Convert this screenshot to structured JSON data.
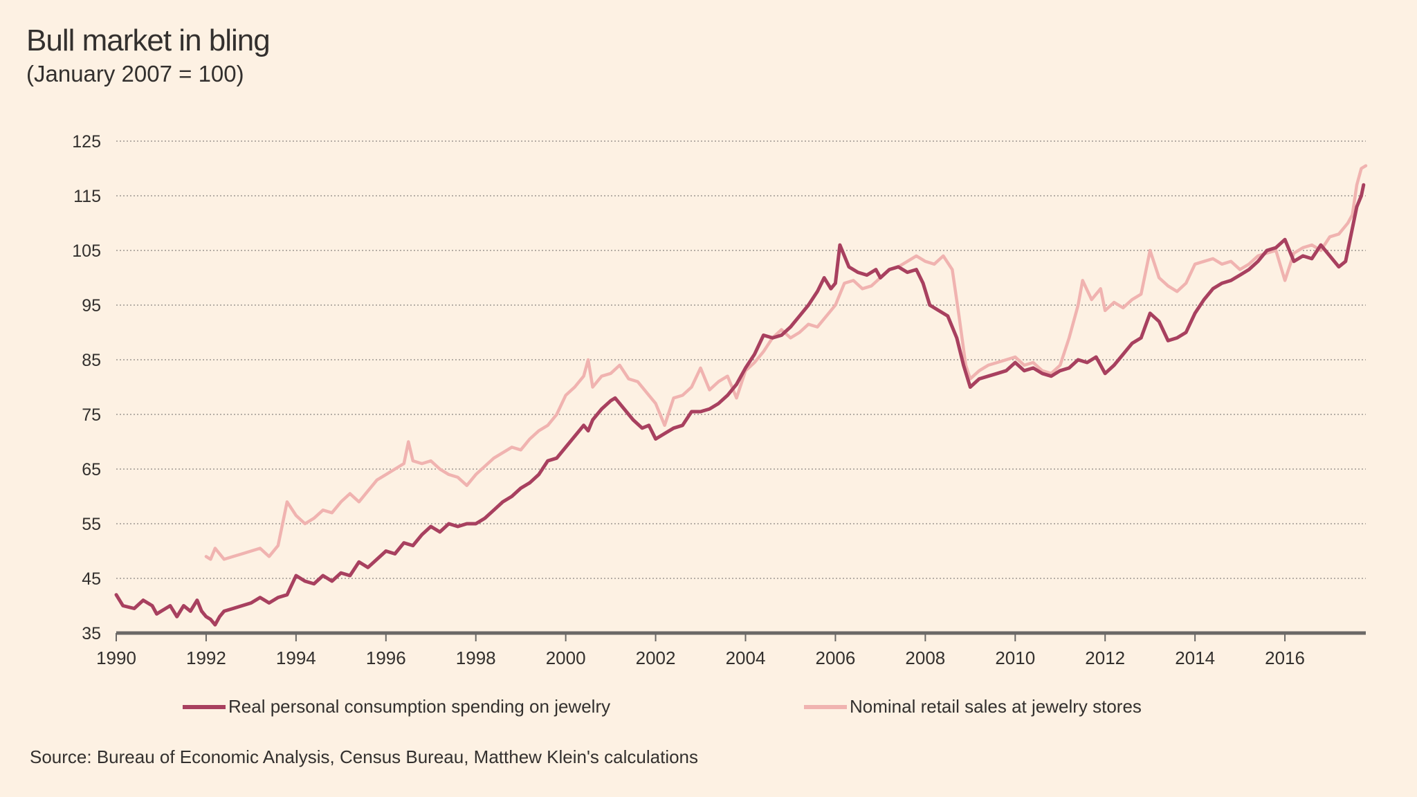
{
  "chart_data": {
    "type": "line",
    "title": "Bull market in bling",
    "subtitle": "(January 2007 = 100)",
    "xlabel": "",
    "ylabel": "",
    "xlim": [
      1990,
      2017.8
    ],
    "ylim": [
      35,
      125
    ],
    "y_ticks": [
      35,
      45,
      55,
      65,
      75,
      85,
      95,
      105,
      115,
      125
    ],
    "x_ticks": [
      "1990",
      "1992",
      "1994",
      "1996",
      "1998",
      "2000",
      "2002",
      "2004",
      "2006",
      "2008",
      "2010",
      "2012",
      "2014",
      "2016"
    ],
    "grid": "horizontal dotted",
    "legend_position": "bottom",
    "series": [
      {
        "name": "Real personal consumption spending on jewelry",
        "color": "#a8405f",
        "points": [
          [
            1990.0,
            42
          ],
          [
            1990.15,
            40
          ],
          [
            1990.4,
            39.5
          ],
          [
            1990.6,
            41
          ],
          [
            1990.8,
            40
          ],
          [
            1990.9,
            38.5
          ],
          [
            1991.0,
            39
          ],
          [
            1991.2,
            40
          ],
          [
            1991.35,
            38
          ],
          [
            1991.5,
            40
          ],
          [
            1991.65,
            39
          ],
          [
            1991.8,
            41
          ],
          [
            1991.9,
            39
          ],
          [
            1992.0,
            38
          ],
          [
            1992.1,
            37.5
          ],
          [
            1992.2,
            36.5
          ],
          [
            1992.3,
            38
          ],
          [
            1992.4,
            39
          ],
          [
            1992.6,
            39.5
          ],
          [
            1992.8,
            40
          ],
          [
            1993.0,
            40.5
          ],
          [
            1993.2,
            41.5
          ],
          [
            1993.4,
            40.5
          ],
          [
            1993.6,
            41.5
          ],
          [
            1993.8,
            42
          ],
          [
            1994.0,
            45.5
          ],
          [
            1994.2,
            44.5
          ],
          [
            1994.4,
            44
          ],
          [
            1994.6,
            45.5
          ],
          [
            1994.8,
            44.5
          ],
          [
            1995.0,
            46
          ],
          [
            1995.2,
            45.5
          ],
          [
            1995.4,
            48
          ],
          [
            1995.6,
            47
          ],
          [
            1995.8,
            48.5
          ],
          [
            1996.0,
            50
          ],
          [
            1996.2,
            49.5
          ],
          [
            1996.4,
            51.5
          ],
          [
            1996.6,
            51
          ],
          [
            1996.8,
            53
          ],
          [
            1997.0,
            54.5
          ],
          [
            1997.2,
            53.5
          ],
          [
            1997.4,
            55
          ],
          [
            1997.6,
            54.5
          ],
          [
            1997.8,
            55
          ],
          [
            1998.0,
            55
          ],
          [
            1998.2,
            56
          ],
          [
            1998.4,
            57.5
          ],
          [
            1998.6,
            59
          ],
          [
            1998.8,
            60
          ],
          [
            1999.0,
            61.5
          ],
          [
            1999.2,
            62.5
          ],
          [
            1999.4,
            64
          ],
          [
            1999.6,
            66.5
          ],
          [
            1999.8,
            67
          ],
          [
            2000.0,
            69
          ],
          [
            2000.2,
            71
          ],
          [
            2000.4,
            73
          ],
          [
            2000.5,
            72
          ],
          [
            2000.6,
            74
          ],
          [
            2000.8,
            76
          ],
          [
            2001.0,
            77.5
          ],
          [
            2001.1,
            78
          ],
          [
            2001.3,
            76
          ],
          [
            2001.5,
            74
          ],
          [
            2001.7,
            72.5
          ],
          [
            2001.85,
            73
          ],
          [
            2002.0,
            70.5
          ],
          [
            2002.2,
            71.5
          ],
          [
            2002.4,
            72.5
          ],
          [
            2002.6,
            73
          ],
          [
            2002.8,
            75.5
          ],
          [
            2003.0,
            75.5
          ],
          [
            2003.2,
            76
          ],
          [
            2003.4,
            77
          ],
          [
            2003.6,
            78.5
          ],
          [
            2003.8,
            80.5
          ],
          [
            2004.0,
            83.5
          ],
          [
            2004.2,
            86
          ],
          [
            2004.4,
            89.5
          ],
          [
            2004.6,
            89
          ],
          [
            2004.8,
            89.5
          ],
          [
            2005.0,
            91
          ],
          [
            2005.2,
            93
          ],
          [
            2005.4,
            95
          ],
          [
            2005.6,
            97.5
          ],
          [
            2005.75,
            100
          ],
          [
            2005.9,
            98
          ],
          [
            2006.0,
            99
          ],
          [
            2006.1,
            106
          ],
          [
            2006.3,
            102
          ],
          [
            2006.5,
            101
          ],
          [
            2006.7,
            100.5
          ],
          [
            2006.9,
            101.5
          ],
          [
            2007.0,
            100
          ],
          [
            2007.2,
            101.5
          ],
          [
            2007.4,
            102
          ],
          [
            2007.6,
            101
          ],
          [
            2007.8,
            101.5
          ],
          [
            2007.95,
            99
          ],
          [
            2008.1,
            95
          ],
          [
            2008.3,
            94
          ],
          [
            2008.5,
            93
          ],
          [
            2008.7,
            89
          ],
          [
            2008.85,
            84
          ],
          [
            2009.0,
            80
          ],
          [
            2009.2,
            81.5
          ],
          [
            2009.4,
            82
          ],
          [
            2009.6,
            82.5
          ],
          [
            2009.8,
            83
          ],
          [
            2010.0,
            84.5
          ],
          [
            2010.2,
            83
          ],
          [
            2010.4,
            83.5
          ],
          [
            2010.6,
            82.5
          ],
          [
            2010.8,
            82
          ],
          [
            2011.0,
            83
          ],
          [
            2011.2,
            83.5
          ],
          [
            2011.4,
            85
          ],
          [
            2011.6,
            84.5
          ],
          [
            2011.8,
            85.5
          ],
          [
            2012.0,
            82.5
          ],
          [
            2012.2,
            84
          ],
          [
            2012.4,
            86
          ],
          [
            2012.6,
            88
          ],
          [
            2012.8,
            89
          ],
          [
            2013.0,
            93.5
          ],
          [
            2013.2,
            92
          ],
          [
            2013.4,
            88.5
          ],
          [
            2013.6,
            89
          ],
          [
            2013.8,
            90
          ],
          [
            2014.0,
            93.5
          ],
          [
            2014.2,
            96
          ],
          [
            2014.4,
            98
          ],
          [
            2014.6,
            99
          ],
          [
            2014.8,
            99.5
          ],
          [
            2015.0,
            100.5
          ],
          [
            2015.2,
            101.5
          ],
          [
            2015.4,
            103
          ],
          [
            2015.6,
            105
          ],
          [
            2015.8,
            105.5
          ],
          [
            2016.0,
            107
          ],
          [
            2016.2,
            103
          ],
          [
            2016.4,
            104
          ],
          [
            2016.6,
            103.5
          ],
          [
            2016.8,
            106
          ],
          [
            2017.0,
            104
          ],
          [
            2017.2,
            102
          ],
          [
            2017.35,
            103
          ],
          [
            2017.5,
            109
          ],
          [
            2017.6,
            113
          ],
          [
            2017.7,
            115
          ],
          [
            2017.75,
            117
          ]
        ]
      },
      {
        "name": "Nominal retail sales at jewelry stores",
        "color": "#f0b3b0",
        "points": [
          [
            1992.0,
            49
          ],
          [
            1992.1,
            48.5
          ],
          [
            1992.2,
            50.5
          ],
          [
            1992.4,
            48.5
          ],
          [
            1992.6,
            49
          ],
          [
            1992.8,
            49.5
          ],
          [
            1993.0,
            50
          ],
          [
            1993.2,
            50.5
          ],
          [
            1993.4,
            49
          ],
          [
            1993.6,
            51
          ],
          [
            1993.7,
            55
          ],
          [
            1993.8,
            59
          ],
          [
            1994.0,
            56.5
          ],
          [
            1994.2,
            55
          ],
          [
            1994.4,
            56
          ],
          [
            1994.6,
            57.5
          ],
          [
            1994.8,
            57
          ],
          [
            1995.0,
            59
          ],
          [
            1995.2,
            60.5
          ],
          [
            1995.4,
            59
          ],
          [
            1995.6,
            61
          ],
          [
            1995.8,
            63
          ],
          [
            1996.0,
            64
          ],
          [
            1996.2,
            65
          ],
          [
            1996.4,
            66
          ],
          [
            1996.5,
            70
          ],
          [
            1996.6,
            66.5
          ],
          [
            1996.8,
            66
          ],
          [
            1997.0,
            66.5
          ],
          [
            1997.2,
            65
          ],
          [
            1997.4,
            64
          ],
          [
            1997.6,
            63.5
          ],
          [
            1997.8,
            62
          ],
          [
            1998.0,
            64
          ],
          [
            1998.2,
            65.5
          ],
          [
            1998.4,
            67
          ],
          [
            1998.6,
            68
          ],
          [
            1998.8,
            69
          ],
          [
            1999.0,
            68.5
          ],
          [
            1999.2,
            70.5
          ],
          [
            1999.4,
            72
          ],
          [
            1999.6,
            73
          ],
          [
            1999.8,
            75
          ],
          [
            2000.0,
            78.5
          ],
          [
            2000.2,
            80
          ],
          [
            2000.4,
            82
          ],
          [
            2000.5,
            85
          ],
          [
            2000.6,
            80
          ],
          [
            2000.8,
            82
          ],
          [
            2001.0,
            82.5
          ],
          [
            2001.2,
            84
          ],
          [
            2001.4,
            81.5
          ],
          [
            2001.6,
            81
          ],
          [
            2001.8,
            79
          ],
          [
            2002.0,
            77
          ],
          [
            2002.2,
            73
          ],
          [
            2002.4,
            78
          ],
          [
            2002.6,
            78.5
          ],
          [
            2002.8,
            80
          ],
          [
            2003.0,
            83.5
          ],
          [
            2003.2,
            79.5
          ],
          [
            2003.4,
            81
          ],
          [
            2003.6,
            82
          ],
          [
            2003.8,
            78
          ],
          [
            2004.0,
            83
          ],
          [
            2004.2,
            84.5
          ],
          [
            2004.4,
            86.5
          ],
          [
            2004.6,
            89
          ],
          [
            2004.8,
            90.5
          ],
          [
            2005.0,
            89
          ],
          [
            2005.2,
            90
          ],
          [
            2005.4,
            91.5
          ],
          [
            2005.6,
            91
          ],
          [
            2005.8,
            93
          ],
          [
            2006.0,
            95
          ],
          [
            2006.2,
            99
          ],
          [
            2006.4,
            99.5
          ],
          [
            2006.6,
            98
          ],
          [
            2006.8,
            98.5
          ],
          [
            2007.0,
            100
          ],
          [
            2007.2,
            101.5
          ],
          [
            2007.4,
            102
          ],
          [
            2007.6,
            103
          ],
          [
            2007.8,
            104
          ],
          [
            2008.0,
            103
          ],
          [
            2008.2,
            102.5
          ],
          [
            2008.4,
            104
          ],
          [
            2008.6,
            101.5
          ],
          [
            2008.75,
            93
          ],
          [
            2008.9,
            84
          ],
          [
            2009.0,
            81.5
          ],
          [
            2009.2,
            83
          ],
          [
            2009.4,
            84
          ],
          [
            2009.6,
            84.5
          ],
          [
            2009.8,
            85
          ],
          [
            2010.0,
            85.5
          ],
          [
            2010.2,
            84
          ],
          [
            2010.4,
            84.5
          ],
          [
            2010.6,
            83
          ],
          [
            2010.8,
            82.5
          ],
          [
            2011.0,
            84
          ],
          [
            2011.2,
            89
          ],
          [
            2011.4,
            95
          ],
          [
            2011.5,
            99.5
          ],
          [
            2011.7,
            96
          ],
          [
            2011.9,
            98
          ],
          [
            2012.0,
            94
          ],
          [
            2012.2,
            95.5
          ],
          [
            2012.4,
            94.5
          ],
          [
            2012.6,
            96
          ],
          [
            2012.8,
            97
          ],
          [
            2013.0,
            105
          ],
          [
            2013.2,
            100
          ],
          [
            2013.4,
            98.5
          ],
          [
            2013.6,
            97.5
          ],
          [
            2013.8,
            99
          ],
          [
            2014.0,
            102.5
          ],
          [
            2014.2,
            103
          ],
          [
            2014.4,
            103.5
          ],
          [
            2014.6,
            102.5
          ],
          [
            2014.8,
            103
          ],
          [
            2015.0,
            101.5
          ],
          [
            2015.2,
            102.5
          ],
          [
            2015.4,
            104
          ],
          [
            2015.6,
            104.5
          ],
          [
            2015.8,
            105
          ],
          [
            2016.0,
            99.5
          ],
          [
            2016.2,
            104.5
          ],
          [
            2016.4,
            105.5
          ],
          [
            2016.6,
            106
          ],
          [
            2016.8,
            105
          ],
          [
            2017.0,
            107.5
          ],
          [
            2017.2,
            108
          ],
          [
            2017.4,
            110
          ],
          [
            2017.5,
            111.5
          ],
          [
            2017.6,
            117
          ],
          [
            2017.7,
            120
          ],
          [
            2017.8,
            120.5
          ]
        ]
      }
    ],
    "source": "Source: Bureau of Economic Analysis, Census Bureau, Matthew Klein's calculations"
  }
}
